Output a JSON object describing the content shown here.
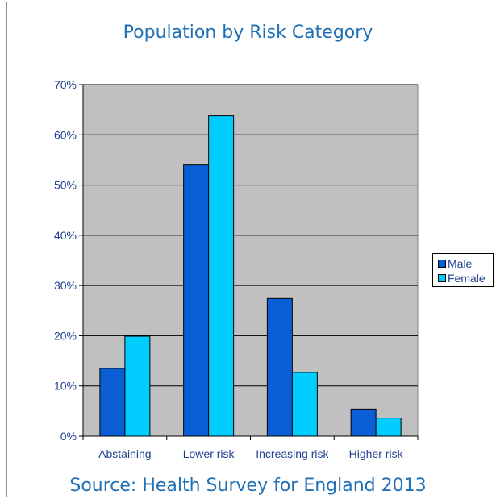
{
  "chart_data": {
    "type": "bar",
    "title": "Population by Risk Category",
    "source": "Source: Health Survey for England 2013",
    "categories": [
      "Abstaining",
      "Lower risk",
      "Increasing risk",
      "Higher risk"
    ],
    "series": [
      {
        "name": "Male",
        "color": "#0b5fd6",
        "values": [
          13.5,
          54,
          27.4,
          5.4
        ]
      },
      {
        "name": "Female",
        "color": "#00ccff",
        "values": [
          19.9,
          63.8,
          12.7,
          3.6
        ]
      }
    ],
    "ylim": [
      0,
      70
    ],
    "yticks": [
      "0%",
      "10%",
      "20%",
      "30%",
      "40%",
      "50%",
      "60%",
      "70%"
    ],
    "ytick_values": [
      0,
      10,
      20,
      30,
      40,
      50,
      60,
      70
    ],
    "grid": true,
    "plot_background": "#c0c0c0",
    "legend_position": "right",
    "xlabel": "",
    "ylabel": ""
  }
}
